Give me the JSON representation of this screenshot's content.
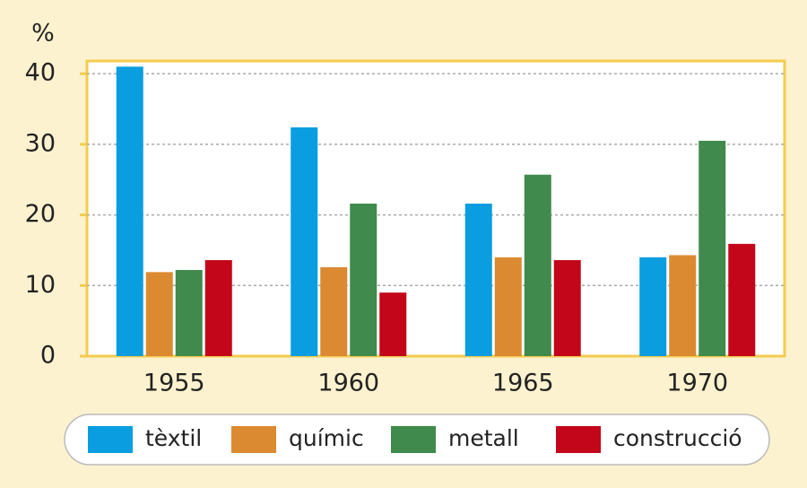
{
  "chart_data": {
    "type": "bar",
    "y_label": "%",
    "categories": [
      "1955",
      "1960",
      "1965",
      "1970"
    ],
    "series": [
      {
        "name": "tèxtil",
        "color": "#0a9de0",
        "values": [
          41.0,
          32.4,
          21.6,
          14.0
        ]
      },
      {
        "name": "químic",
        "color": "#dc8a32",
        "values": [
          11.9,
          12.6,
          14.0,
          14.3
        ]
      },
      {
        "name": "metall",
        "color": "#3f8a4c",
        "values": [
          12.2,
          21.6,
          25.7,
          30.5
        ]
      },
      {
        "name": "construcció",
        "color": "#c4061a",
        "values": [
          13.6,
          9.0,
          13.6,
          15.9
        ]
      }
    ],
    "ylim": [
      0,
      41.8
    ],
    "yticks": [
      0,
      10,
      20,
      30,
      40
    ],
    "grid": true
  }
}
